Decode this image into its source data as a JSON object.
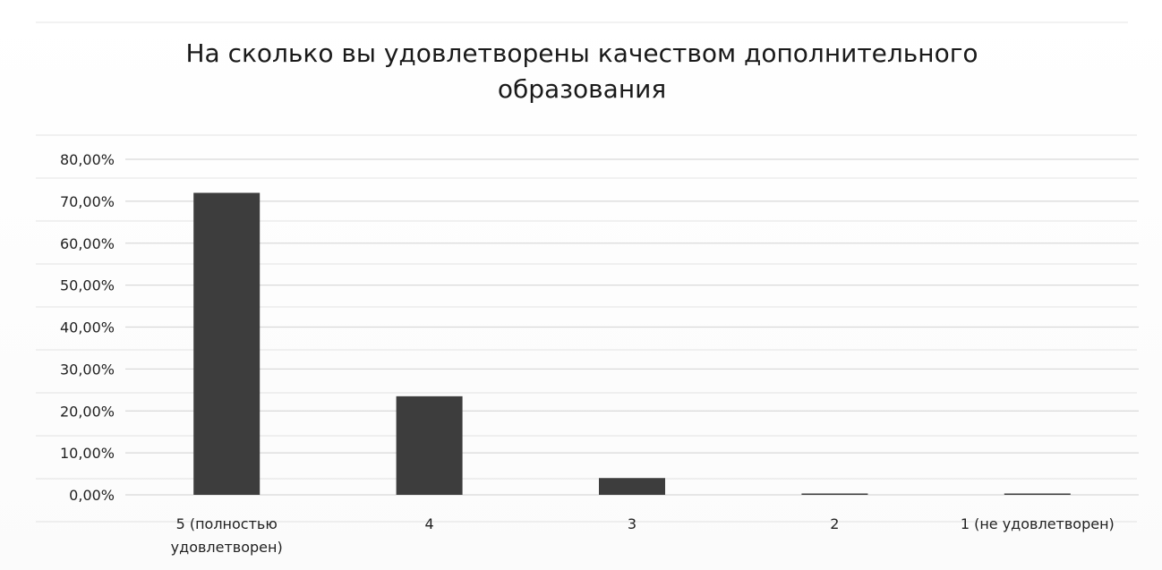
{
  "chart_data": {
    "type": "bar",
    "title": "На сколько вы удовлетворены качеством дополнительного образования",
    "title_lines": [
      "На сколько вы удовлетворены качеством дополнительного",
      "образования"
    ],
    "categories": [
      "5 (полностью удовлетворен)",
      "4",
      "3",
      "2",
      "1 (не удовлетворен)"
    ],
    "category_lines": [
      [
        "5 (полностью",
        "удовлетворен)"
      ],
      [
        "4"
      ],
      [
        "3"
      ],
      [
        "2"
      ],
      [
        "1 (не удовлетворен)"
      ]
    ],
    "values": [
      0.72,
      0.235,
      0.04,
      0.0,
      0.0
    ],
    "ylim": [
      0,
      0.8
    ],
    "yticks": [
      0,
      0.1,
      0.2,
      0.3,
      0.4,
      0.5,
      0.6,
      0.7,
      0.8
    ],
    "ytick_labels": [
      "0,00%",
      "10,00%",
      "20,00%",
      "30,00%",
      "40,00%",
      "50,00%",
      "60,00%",
      "70,00%",
      "80,00%"
    ],
    "xlabel": "",
    "ylabel": "",
    "grid": true,
    "legend": "none",
    "bar_color": "#3d3d3d",
    "grid_color": "#d9d9d9"
  }
}
